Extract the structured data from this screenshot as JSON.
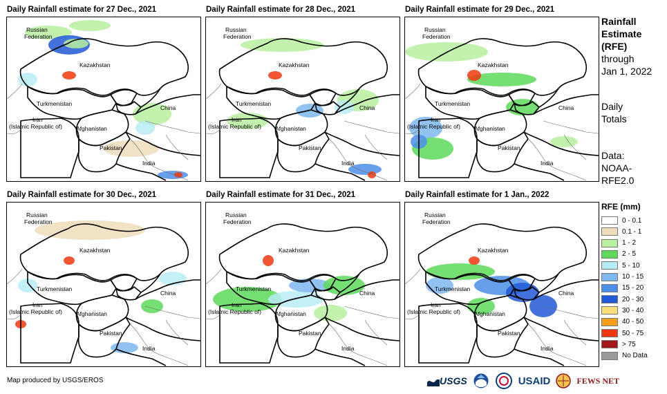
{
  "panels": [
    {
      "title": "Daily Rainfall estimate for 27 Dec., 2021"
    },
    {
      "title": "Daily Rainfall estimate for 28 Dec., 2021"
    },
    {
      "title": "Daily Rainfall estimate for 29 Dec., 2021"
    },
    {
      "title": "Daily Rainfall estimate for 30 Dec., 2021"
    },
    {
      "title": "Daily Rainfall estimate for 31 Dec., 2021"
    },
    {
      "title": "Daily Rainfall estimate for 1 Jan., 2022"
    }
  ],
  "map_labels": {
    "russia_1": "Russian",
    "russia_2": "Federation",
    "kazakhstan": "Kazakhstan",
    "turkmenistan": "Turkmenistan",
    "iran_1": "Iran",
    "iran_2": "(Islamic Republic of)",
    "afghanistan": "Afghanistan",
    "china": "China",
    "pakistan": "Pakistan",
    "india": "India"
  },
  "side": {
    "line1": "Rainfall",
    "line2": "Estimate",
    "line3": "(RFE)",
    "line4": "through",
    "line5": "Jan 1, 2022",
    "daily1": "Daily",
    "daily2": "Totals",
    "data1": "Data:",
    "data2": "NOAA-",
    "data3": "RFE2.0"
  },
  "legend": {
    "title": "RFE (mm)",
    "items": [
      {
        "label": "0 - 0.1",
        "color": "#ffffff"
      },
      {
        "label": "0.1 - 1",
        "color": "#efdcbb"
      },
      {
        "label": "1 - 2",
        "color": "#b8efa0"
      },
      {
        "label": "2 - 5",
        "color": "#5ed95c"
      },
      {
        "label": "5 - 10",
        "color": "#b8ecf4"
      },
      {
        "label": "10 - 15",
        "color": "#7fb7ef"
      },
      {
        "label": "15 - 20",
        "color": "#4c8ee8"
      },
      {
        "label": "20 - 30",
        "color": "#2259d6"
      },
      {
        "label": "30 - 40",
        "color": "#f9e07a"
      },
      {
        "label": "40 - 50",
        "color": "#f79e1b"
      },
      {
        "label": "50 - 75",
        "color": "#f0380f"
      },
      {
        "label": "> 75",
        "color": "#a3161a"
      },
      {
        "label": "No Data",
        "color": "#9a9a9a"
      }
    ]
  },
  "footer": "Map produced by USGS/EROS",
  "logos": {
    "usgs": "USGS",
    "usaid": "USAID",
    "fewsnet": "FEWS NET"
  }
}
